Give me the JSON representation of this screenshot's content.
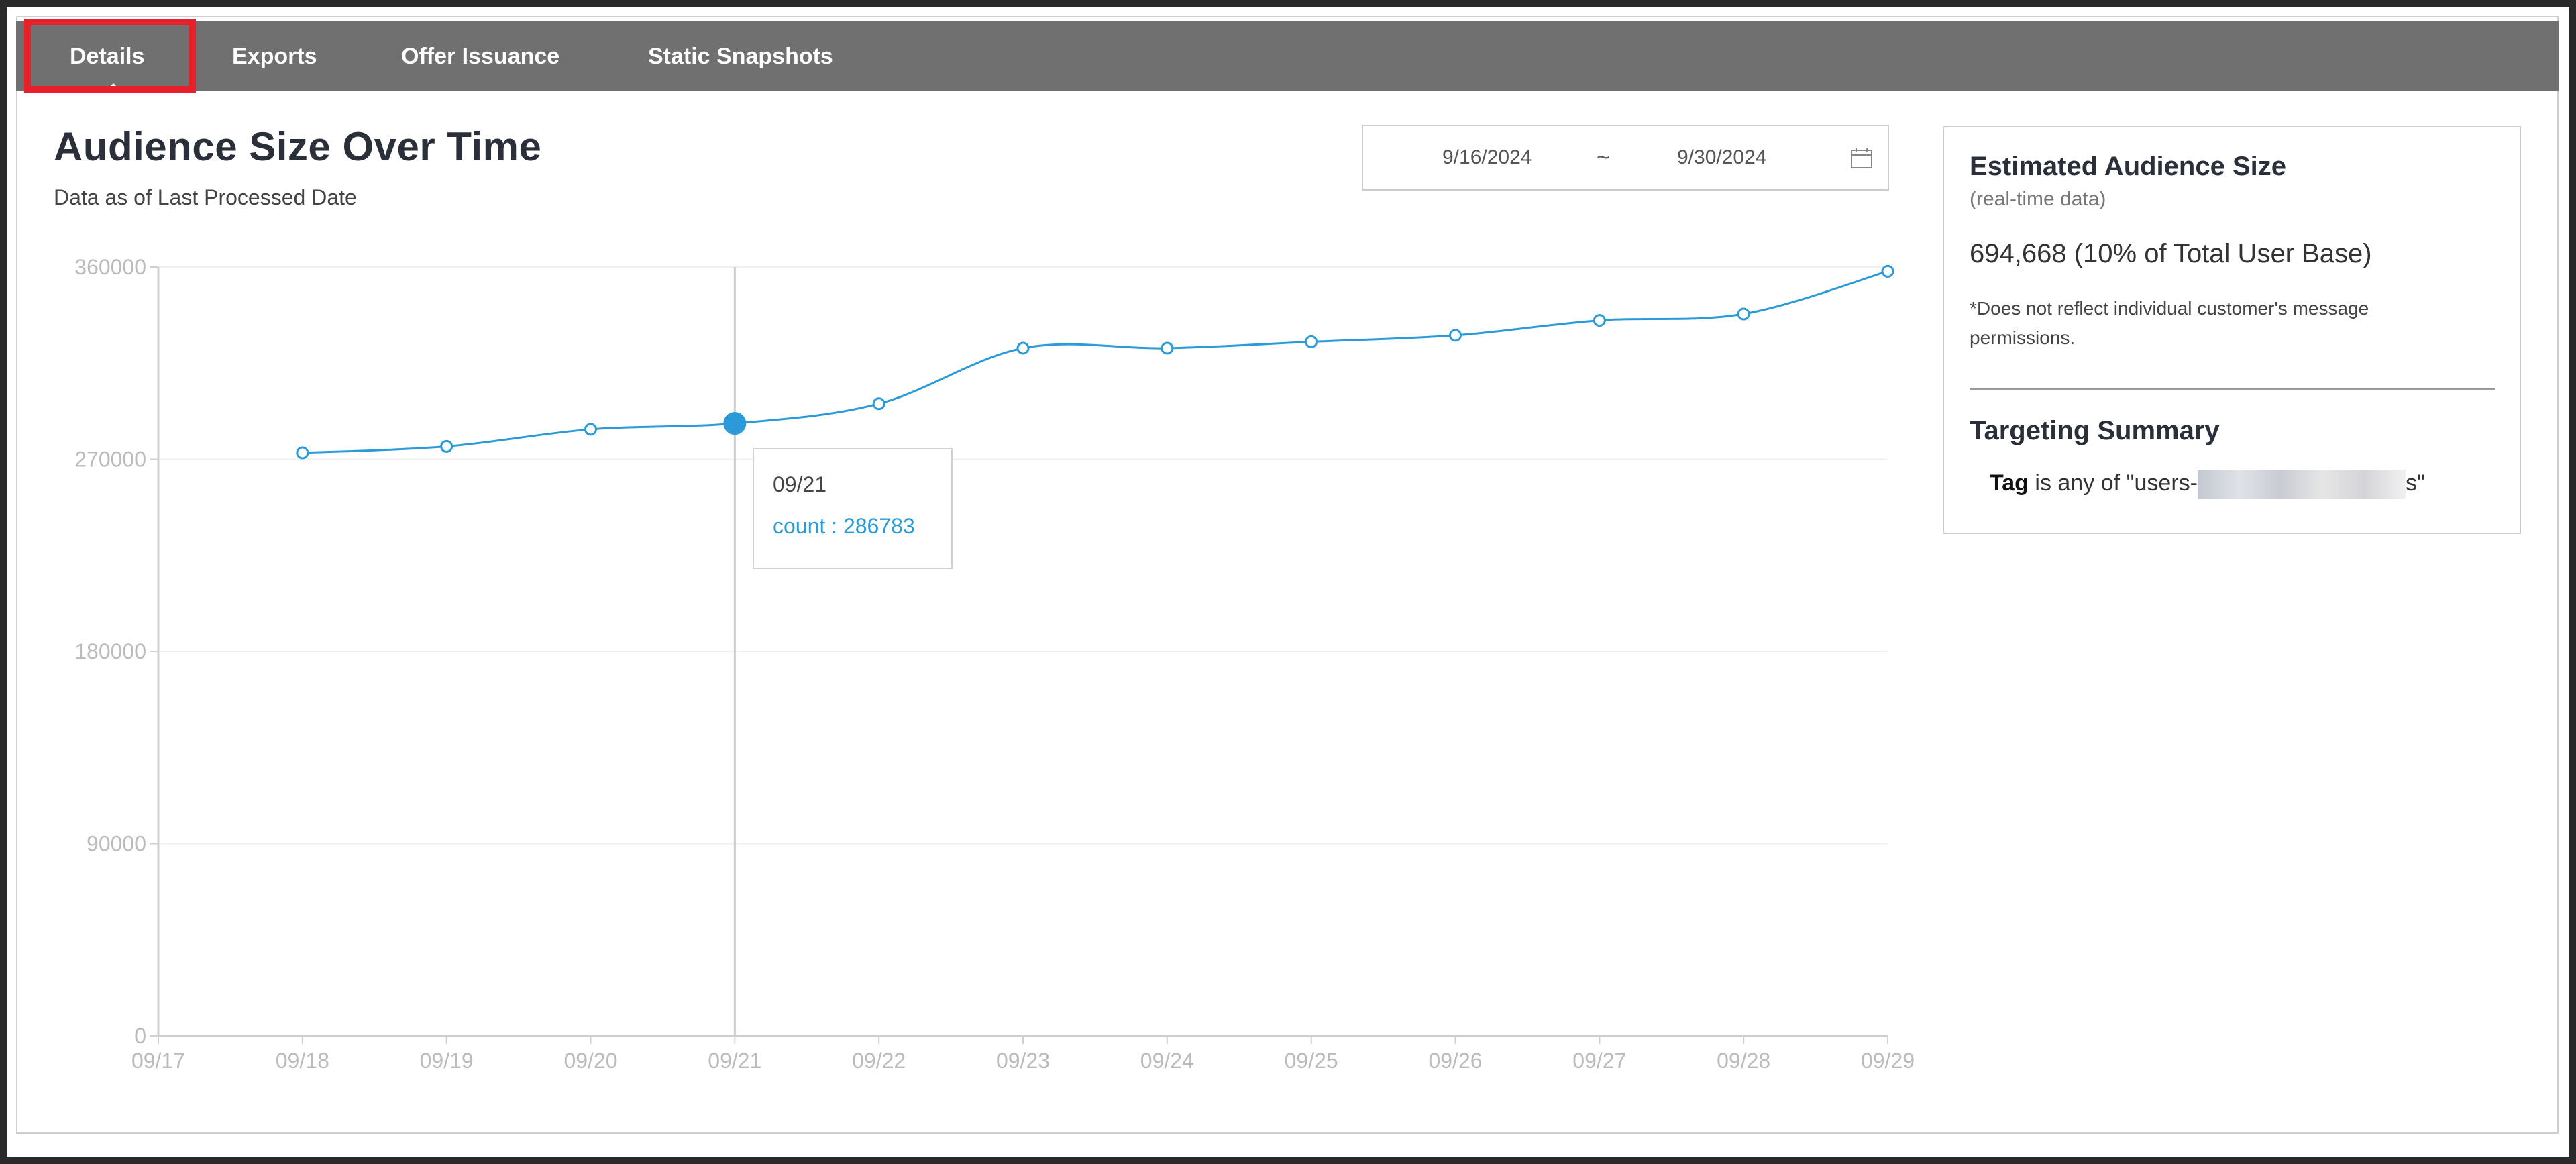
{
  "tabs": [
    {
      "label": "Details",
      "active": true
    },
    {
      "label": "Exports",
      "active": false
    },
    {
      "label": "Offer Issuance",
      "active": false
    },
    {
      "label": "Static Snapshots",
      "active": false
    }
  ],
  "header": {
    "title": "Audience Size Over Time",
    "subtitle": "Data as of Last Processed Date"
  },
  "date_range": {
    "start": "9/16/2024",
    "separator": "~",
    "end": "9/30/2024",
    "icon": "calendar-icon"
  },
  "summary": {
    "estimated_title": "Estimated Audience Size",
    "estimated_note": "(real-time data)",
    "estimated_value": "694,668 (10% of Total User Base)",
    "disclaimer": "*Does not reflect individual customer's message permissions.",
    "targeting_title": "Targeting Summary",
    "tag_label": "Tag",
    "tag_text": "is any of \"users-",
    "tag_suffix": "s\""
  },
  "tooltip": {
    "date": "09/21",
    "value_text": "count : 286783"
  },
  "colors": {
    "tabbar": "#707070",
    "line": "#2a9bd8",
    "highlight": "#e8202a"
  },
  "chart_data": {
    "type": "line",
    "x": [
      "09/17",
      "09/18",
      "09/19",
      "09/20",
      "09/21",
      "09/22",
      "09/23",
      "09/24",
      "09/25",
      "09/26",
      "09/27",
      "09/28",
      "09/29"
    ],
    "series": [
      {
        "values": [
          null,
          273000,
          276000,
          284000,
          286783,
          296000,
          322000,
          322000,
          325000,
          328000,
          335000,
          338000,
          358000
        ]
      }
    ],
    "y_ticks": [
      "360000",
      "270000",
      "180000",
      "90000",
      "0"
    ],
    "ylim": [
      0,
      360000
    ],
    "highlighted_index": 4,
    "grid": true
  }
}
